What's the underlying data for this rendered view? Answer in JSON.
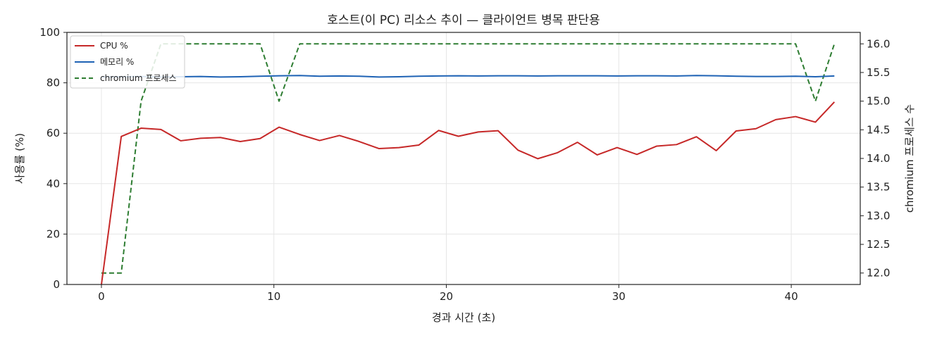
{
  "chart_data": {
    "type": "line",
    "title": "호스트(이 PC) 리소스 추이 — 클라이언트 병목 판단용",
    "xlabel": "경과 시간 (초)",
    "ylabel": "사용률 (%)",
    "y2label": "chromium 프로세스 수",
    "xlim": [
      -2,
      44
    ],
    "ylim": [
      0,
      100
    ],
    "y2lim": [
      11.8,
      16.2
    ],
    "x_ticks": [
      0,
      10,
      20,
      30,
      40
    ],
    "y_ticks": [
      0,
      20,
      40,
      60,
      80,
      100
    ],
    "y2_ticks": [
      12.0,
      12.5,
      13.0,
      13.5,
      14.0,
      14.5,
      15.0,
      15.5,
      16.0
    ],
    "y2_tick_labels": [
      "12.0",
      "12.5",
      "13.0",
      "13.5",
      "14.0",
      "14.5",
      "15.0",
      "15.5",
      "16.0"
    ],
    "grid": true,
    "legend_position": "top-left",
    "x": [
      0.0,
      1.15,
      2.3,
      3.45,
      4.6,
      5.75,
      6.9,
      8.05,
      9.2,
      10.3,
      11.5,
      12.65,
      13.8,
      14.95,
      16.1,
      17.25,
      18.4,
      19.55,
      20.7,
      21.85,
      23.0,
      24.15,
      25.3,
      26.45,
      27.6,
      28.75,
      29.9,
      31.05,
      32.2,
      33.35,
      34.5,
      35.65,
      36.8,
      37.95,
      39.1,
      40.25,
      41.4,
      42.5
    ],
    "series": [
      {
        "name": "CPU %",
        "axis": "left",
        "color": "#c62828",
        "style": "solid",
        "values": [
          0,
          58.7,
          62.0,
          61.5,
          57.0,
          58.0,
          58.3,
          56.7,
          57.9,
          62.4,
          59.5,
          57.1,
          59.1,
          56.7,
          53.9,
          54.3,
          55.3,
          61.1,
          58.8,
          60.5,
          61.0,
          53.3,
          49.9,
          52.3,
          56.4,
          51.4,
          54.3,
          51.6,
          54.9,
          55.5,
          58.6,
          53.1,
          60.9,
          61.8,
          65.4,
          66.6,
          64.4,
          72.4
        ]
      },
      {
        "name": "메모리 %",
        "axis": "left",
        "color": "#1f63b5",
        "style": "solid",
        "values": [
          82.3,
          82.4,
          82.5,
          82.3,
          82.4,
          82.5,
          82.3,
          82.4,
          82.6,
          82.8,
          82.9,
          82.6,
          82.7,
          82.6,
          82.3,
          82.4,
          82.6,
          82.7,
          82.8,
          82.7,
          82.8,
          82.8,
          82.7,
          82.8,
          82.8,
          82.8,
          82.7,
          82.8,
          82.8,
          82.7,
          82.9,
          82.8,
          82.6,
          82.5,
          82.5,
          82.6,
          82.4,
          82.7
        ]
      },
      {
        "name": "chromium 프로세스",
        "axis": "right",
        "color": "#2e7d32",
        "style": "dashed",
        "values": [
          12,
          12,
          15,
          16,
          16,
          16,
          16,
          16,
          16,
          15,
          16,
          16,
          16,
          16,
          16,
          16,
          16,
          16,
          16,
          16,
          16,
          16,
          16,
          16,
          16,
          16,
          16,
          16,
          16,
          16,
          16,
          16,
          16,
          16,
          16,
          16,
          15,
          16
        ]
      }
    ]
  }
}
